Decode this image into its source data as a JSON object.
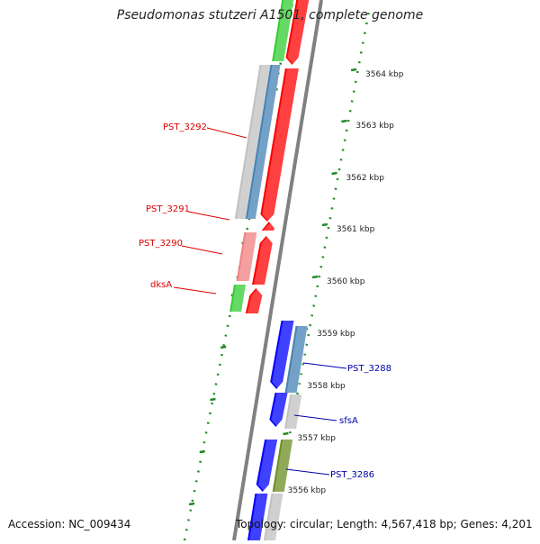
{
  "title": "Pseudomonas stutzeri A1501, complete genome",
  "accession": "Accession: NC_009434",
  "summary": "Topology: circular; Length: 4,567,418 bp; Genes: 4,201",
  "colors": {
    "ruler": "#228b22",
    "backbone": "#808080",
    "red": "#ff0000",
    "pink": "#f08080",
    "green": "#32cd32",
    "blue": "#0000ff",
    "steelblue": "#4682b4",
    "silver": "#c0c0c0",
    "olive": "#6b8e23",
    "label_red": "#dd0000",
    "label_blue": "#0000aa"
  },
  "ruler_labels": [
    "3564 kbp",
    "3563 kbp",
    "3562 kbp",
    "3561 kbp",
    "3560 kbp",
    "3559 kbp",
    "3558 kbp",
    "3557 kbp",
    "3556 kbp"
  ],
  "gene_labels": [
    {
      "text": "PST_3292",
      "side": "left",
      "color": "label_red"
    },
    {
      "text": "PST_3291",
      "side": "left",
      "color": "label_red"
    },
    {
      "text": "PST_3290",
      "side": "left",
      "color": "label_red"
    },
    {
      "text": "dksA",
      "side": "left",
      "color": "label_red"
    },
    {
      "text": "PST_3288",
      "side": "right",
      "color": "label_blue"
    },
    {
      "text": "sfsA",
      "side": "right",
      "color": "label_blue"
    },
    {
      "text": "PST_3286",
      "side": "right",
      "color": "label_blue"
    }
  ]
}
